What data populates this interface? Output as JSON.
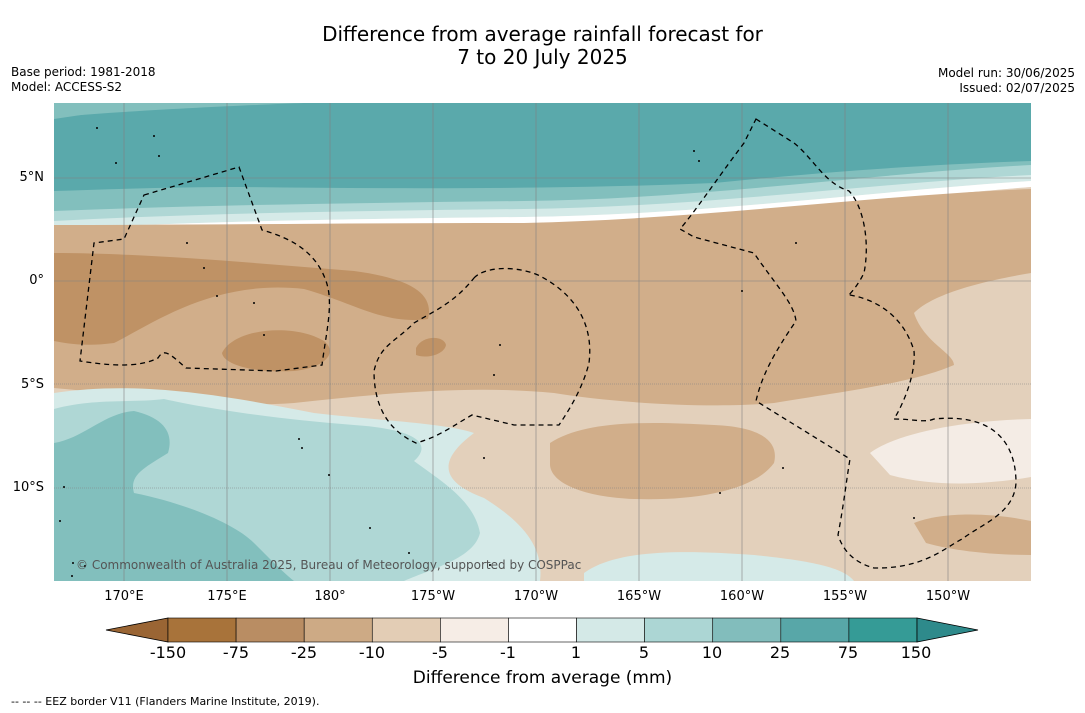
{
  "title": {
    "line1": "Difference from average rainfall forecast for",
    "line2": "7 to 20 July 2025"
  },
  "meta_left": {
    "base_period": "Base period: 1981-2018",
    "model": "Model: ACCESS-S2"
  },
  "meta_right": {
    "model_run": "Model run: 30/06/2025",
    "issued": "Issued: 02/07/2025"
  },
  "map": {
    "lat_labels": [
      "5°N",
      "0°",
      "5°S",
      "10°S"
    ],
    "lon_labels": [
      "170°E",
      "175°E",
      "180°",
      "175°W",
      "170°W",
      "165°W",
      "160°W",
      "155°W",
      "150°W"
    ],
    "copyright": "© Commonwealth of Australia 2025, Bureau of Meteorology, supported by COSPPac",
    "colors": {
      "dry_strong": "#bf9265",
      "dry_mid": "#d1ae8a",
      "dry_light": "#e3d0bb",
      "dry_faint": "#f4ece5",
      "neutral": "#ffffff",
      "wet_faint": "#d5eae8",
      "wet_light": "#afd7d5",
      "wet_mid": "#82bfbd",
      "wet_strong": "#5aa9ab",
      "gridline": "#808080",
      "eez_border": "#000000"
    }
  },
  "colorbar": {
    "tick_labels": [
      "-150",
      "-75",
      "-25",
      "-10",
      "-5",
      "-1",
      "1",
      "5",
      "10",
      "25",
      "75",
      "150"
    ],
    "colors": [
      "#a8733a",
      "#b98d63",
      "#cdaa85",
      "#e3cdb5",
      "#f6ede6",
      "#ffffff",
      "#d4e9e7",
      "#acd6d4",
      "#82bdbc",
      "#58a7a8",
      "#359b96"
    ],
    "under_color": "#9a6534",
    "over_color": "#2e8a8b",
    "label": "Difference from average (mm)"
  },
  "footer": "--  --  -- EEZ border V11 (Flanders Marine Institute, 2019)."
}
